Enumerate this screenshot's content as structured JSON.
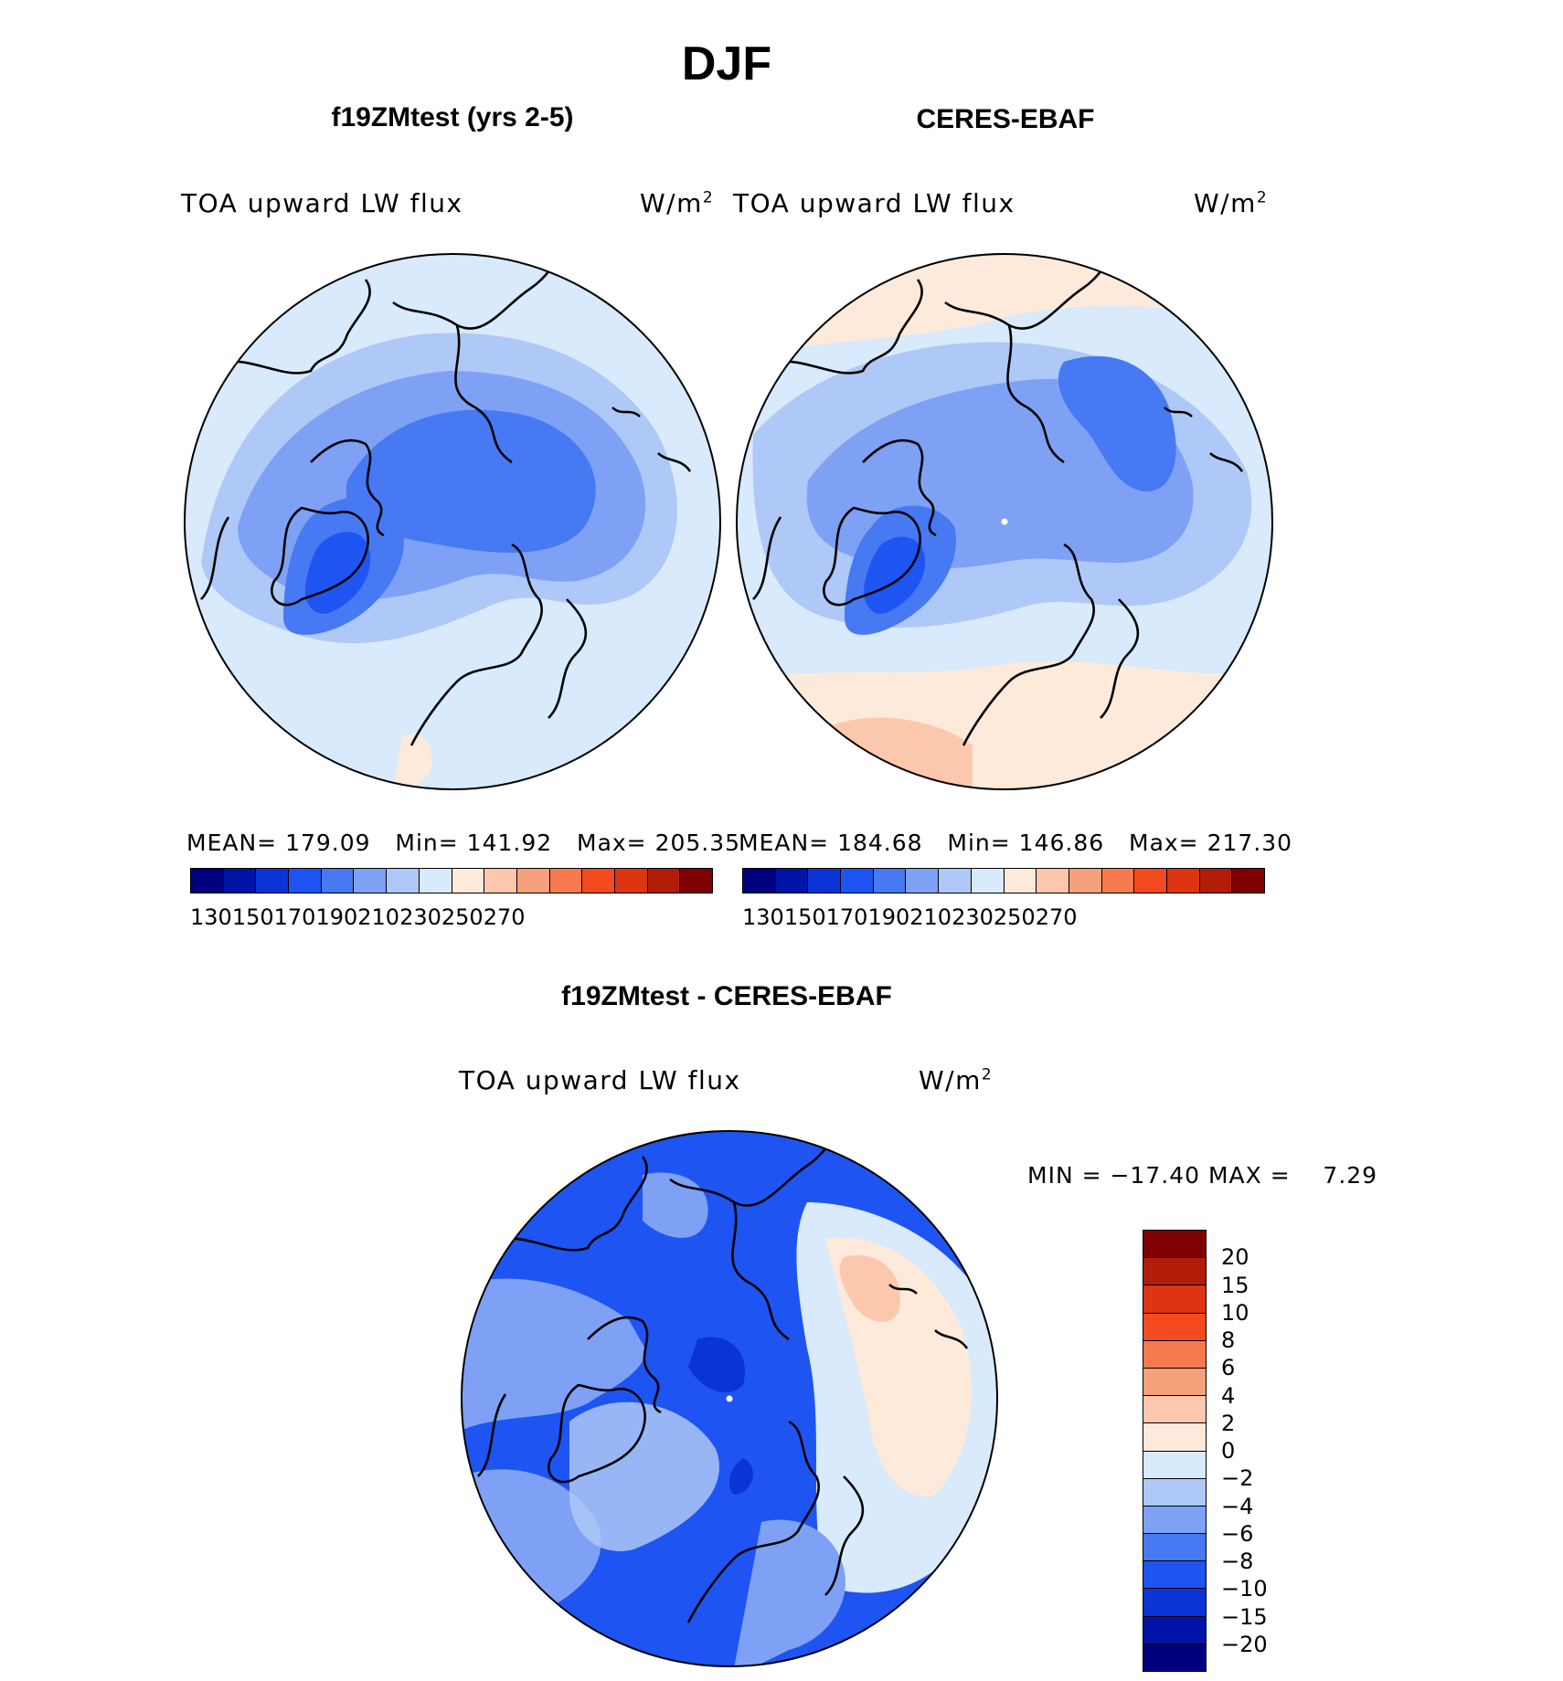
{
  "figure": {
    "title": "DJF",
    "colors": {
      "abs_scale": [
        "#00007f",
        "#0015a8",
        "#0b34d6",
        "#1e55f2",
        "#4679f2",
        "#7ea1f5",
        "#aec8f7",
        "#d8eafc",
        "#feeadb",
        "#fcc8ad",
        "#f7a07c",
        "#f77a4f",
        "#f44a1f",
        "#dd3411",
        "#b21d0a",
        "#7f0000"
      ],
      "diff_scale": [
        "#7f0000",
        "#b21d0a",
        "#dd3411",
        "#f44a1f",
        "#f77a4f",
        "#f7a07c",
        "#fcc8ad",
        "#feeadb",
        "#d8eafc",
        "#aec8f7",
        "#7ea1f5",
        "#4679f2",
        "#1e55f2",
        "#0b34d6",
        "#0015a8",
        "#00007f"
      ]
    }
  },
  "panels": [
    {
      "id": "model",
      "title": "f19ZMtest (yrs 2-5)",
      "variable": "TOA upward LW flux",
      "units": "W/m",
      "units_sup": "2",
      "stats": {
        "mean_label": "MEAN=",
        "mean": "179.09",
        "min_label": "Min=",
        "min": "141.92",
        "max_label": "Max=",
        "max": "205.35"
      },
      "colorbar_ticks": [
        "130",
        "150",
        "170",
        "190",
        "210",
        "230",
        "250",
        "270"
      ]
    },
    {
      "id": "obs",
      "title": "CERES-EBAF",
      "variable": "TOA upward LW flux",
      "units": "W/m",
      "units_sup": "2",
      "stats": {
        "mean_label": "MEAN=",
        "mean": "184.68",
        "min_label": "Min=",
        "min": "146.86",
        "max_label": "Max=",
        "max": "217.30"
      },
      "colorbar_ticks": [
        "130",
        "150",
        "170",
        "190",
        "210",
        "230",
        "250",
        "270"
      ]
    }
  ],
  "difference": {
    "title": "f19ZMtest - CERES-EBAF",
    "variable": "TOA upward LW flux",
    "units": "W/m",
    "units_sup": "2",
    "minmax": "MIN = −17.40 MAX =    7.29",
    "colorbar_labels": [
      "20",
      "15",
      "10",
      "8",
      "6",
      "4",
      "2",
      "0",
      "−2",
      "−4",
      "−6",
      "−8",
      "−10",
      "−15",
      "−20"
    ]
  }
}
